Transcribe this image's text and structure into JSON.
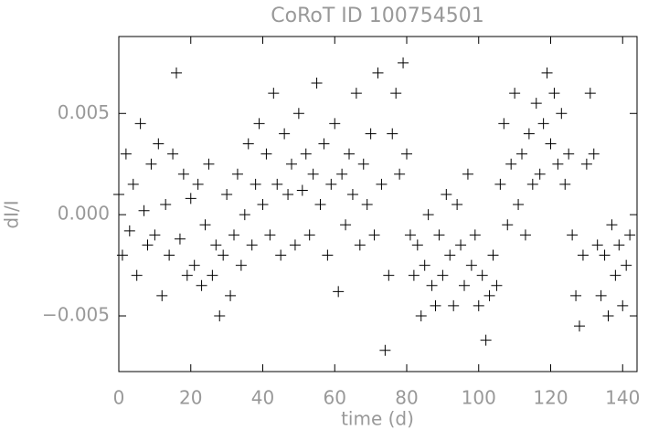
{
  "chart_data": {
    "type": "scatter",
    "title": "CoRoT ID 100754501",
    "x_label": "time (d)",
    "y_label": "dI/I",
    "color": "#000000",
    "marker": "+",
    "xlim": [
      0,
      144
    ],
    "ylim": [
      -0.00775,
      0.0088
    ],
    "xticks": [
      0,
      20,
      40,
      60,
      80,
      100,
      120,
      140
    ],
    "yticks": [
      {
        "value": -0.005,
        "label": "−0.005"
      },
      {
        "value": 0,
        "label": "0.000"
      },
      0.005
    ],
    "x": [
      0,
      1,
      2,
      3,
      4,
      5,
      6,
      7,
      8,
      9,
      10,
      11,
      12,
      13,
      14,
      15,
      16,
      17,
      18,
      19,
      20,
      21,
      22,
      23,
      24,
      25,
      26,
      27,
      28,
      29,
      30,
      31,
      32,
      33,
      34,
      35,
      36,
      37,
      38,
      39,
      40,
      41,
      42,
      43,
      44,
      45,
      46,
      47,
      48,
      49,
      50,
      51,
      52,
      53,
      54,
      55,
      56,
      57,
      58,
      59,
      60,
      61,
      62,
      63,
      64,
      65,
      66,
      67,
      68,
      69,
      70,
      71,
      72,
      73,
      74,
      75,
      76,
      77,
      78,
      79,
      80,
      81,
      82,
      83,
      84,
      85,
      86,
      87,
      88,
      89,
      90,
      91,
      92,
      93,
      94,
      95,
      96,
      97,
      98,
      99,
      100,
      101,
      102,
      103,
      104,
      105,
      106,
      107,
      108,
      109,
      110,
      111,
      112,
      113,
      114,
      115,
      116,
      117,
      118,
      119,
      120,
      121,
      122,
      123,
      124,
      125,
      126,
      127,
      128,
      129,
      130,
      131,
      132,
      133,
      134,
      135,
      136,
      137,
      138,
      139,
      140,
      141,
      142
    ],
    "values": [
      0.001,
      -0.002,
      0.003,
      -0.0008,
      0.0015,
      -0.003,
      0.0045,
      0.0002,
      -0.0015,
      0.0025,
      -0.001,
      0.0035,
      -0.004,
      0.0005,
      -0.002,
      0.003,
      0.007,
      -0.0012,
      0.002,
      -0.003,
      0.0008,
      -0.0025,
      0.0015,
      -0.0035,
      -0.0005,
      0.0025,
      -0.003,
      -0.0015,
      -0.005,
      -0.002,
      0.001,
      -0.004,
      -0.001,
      0.002,
      -0.0025,
      0.0,
      0.0035,
      -0.0015,
      0.0015,
      0.0045,
      0.0005,
      0.003,
      -0.001,
      0.006,
      0.0015,
      -0.002,
      0.004,
      0.001,
      0.0025,
      -0.0015,
      0.005,
      0.0012,
      0.003,
      -0.001,
      0.002,
      0.0065,
      0.0005,
      0.0035,
      -0.002,
      0.0015,
      0.0045,
      -0.0038,
      0.002,
      -0.0005,
      0.003,
      0.001,
      0.006,
      -0.0015,
      0.0025,
      0.0005,
      0.004,
      -0.001,
      0.007,
      0.0015,
      -0.0067,
      -0.003,
      0.004,
      0.006,
      0.002,
      0.0075,
      0.003,
      -0.001,
      -0.003,
      -0.0015,
      -0.005,
      -0.0025,
      0.0,
      -0.0035,
      -0.0045,
      -0.001,
      -0.003,
      0.001,
      -0.002,
      -0.0045,
      0.0005,
      -0.0015,
      -0.0035,
      0.002,
      -0.0025,
      -0.001,
      -0.0045,
      -0.003,
      -0.0062,
      -0.004,
      -0.002,
      -0.0035,
      0.0015,
      0.0045,
      -0.0005,
      0.0025,
      0.006,
      0.0005,
      0.003,
      -0.001,
      0.004,
      0.0015,
      0.0055,
      0.002,
      0.0045,
      0.007,
      0.0035,
      0.006,
      0.0025,
      0.005,
      0.0015,
      0.003,
      -0.001,
      -0.004,
      -0.0055,
      -0.002,
      0.0025,
      0.006,
      0.003,
      -0.0015,
      -0.004,
      -0.002,
      -0.005,
      -0.0005,
      -0.003,
      -0.0015,
      -0.0045,
      -0.0025,
      -0.001
    ]
  }
}
